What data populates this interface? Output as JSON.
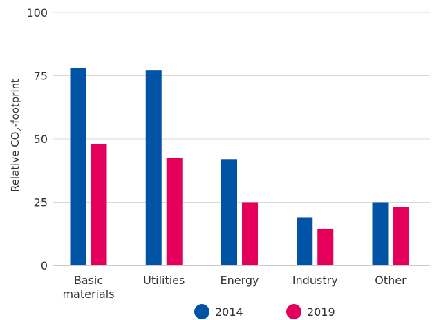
{
  "chart_data": {
    "type": "bar",
    "categories": [
      "Basic materials",
      "Utilities",
      "Energy",
      "Industry",
      "Other"
    ],
    "category_label_lines": [
      [
        "Basic",
        "materials"
      ],
      [
        "Utilities"
      ],
      [
        "Energy"
      ],
      [
        "Industry"
      ],
      [
        "Other"
      ]
    ],
    "series": [
      {
        "name": "2014",
        "values": [
          78,
          77,
          42,
          19,
          25
        ],
        "color": "#0053a5"
      },
      {
        "name": "2019",
        "values": [
          48,
          42.5,
          25,
          14.5,
          23
        ],
        "color": "#e4005a"
      }
    ],
    "ylabel": {
      "main": "Relative CO",
      "subscript": "2",
      "suffix": "-footprint"
    },
    "ylim": [
      0,
      100
    ],
    "yticks": [
      0,
      25,
      50,
      75,
      100
    ],
    "grid": true,
    "legend_position": "bottom"
  }
}
